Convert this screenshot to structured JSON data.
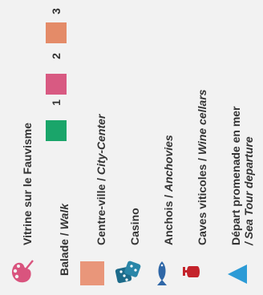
{
  "legend": {
    "fauvisme": {
      "label": "Vitrine sur le Fauvisme",
      "icon": "paint-palette-icon",
      "color": "#d9547e"
    },
    "balade": {
      "label": "Balade",
      "label_sub": "Walk",
      "steps": [
        {
          "num": "1",
          "color": "#1aa56a"
        },
        {
          "num": "2",
          "color": "#d85a82"
        },
        {
          "num": "3",
          "color": "#e48b68"
        }
      ]
    },
    "centre": {
      "label": "Centre-ville / ",
      "label_sub": "City-Center",
      "color": "#e9967a"
    },
    "casino": {
      "label": "Casino",
      "icon": "dice-icon",
      "color": "#1d6b8a"
    },
    "anchois": {
      "label": "Anchois / ",
      "label_sub": "Anchovies",
      "icon": "fish-icon",
      "color": "#2f67a7"
    },
    "caves": {
      "label": "Caves viticoles / ",
      "label_sub": "Wine cellars",
      "icon": "wine-glass-icon",
      "color": "#c4232b"
    },
    "depart": {
      "label": "Départ promenade en mer",
      "label_sub": "/ Sea Tour departure",
      "icon": "triangle-icon",
      "color": "#2c9bd6"
    }
  }
}
